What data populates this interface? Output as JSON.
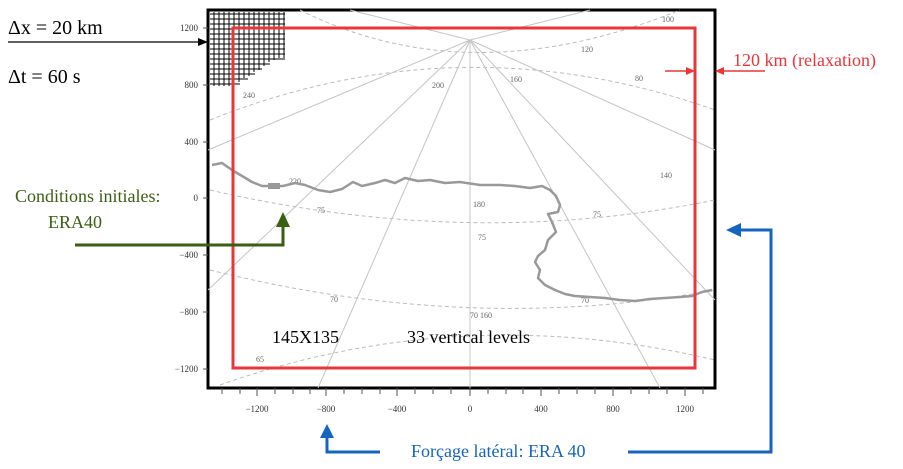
{
  "annotations": {
    "dx_text": "Δx = 20 km",
    "dt_text": "Δt = 60 s",
    "relaxation_text": "120 km (relaxation)",
    "initial_conditions_line1": "Conditions initiales:",
    "initial_conditions_line2": "ERA40",
    "lateral_forcing_text": "Forçage latéral: ERA 40",
    "grid_size_text": "145X135",
    "vertical_levels_text": "33 vertical levels"
  },
  "axes": {
    "x_ticks": [
      "−1200",
      "−800",
      "−400",
      "0",
      "400",
      "800",
      "1200"
    ],
    "y_ticks": [
      "1200",
      "800",
      "400",
      "0",
      "−400",
      "−800",
      "−1200"
    ]
  },
  "contour_labels": {
    "latitudes": [
      "80",
      "75",
      "70",
      "65"
    ],
    "longitudes": [
      "100",
      "120",
      "140",
      "160",
      "180",
      "200",
      "220",
      "240",
      "160"
    ]
  },
  "colors": {
    "relaxation": "#e8363a",
    "initial_conditions": "#3a5e12",
    "lateral_forcing": "#1565c0",
    "frame": "#000000",
    "coastline": "#999999",
    "contours": "#bbbbbb"
  }
}
